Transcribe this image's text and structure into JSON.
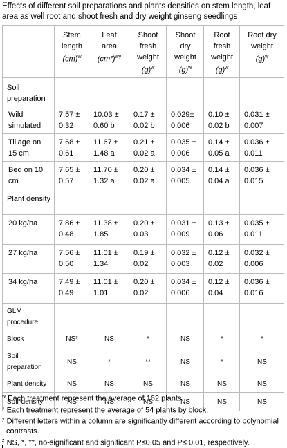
{
  "title": "Effects of different soil preparations and plants densities on stem length, leaf area as well root and shoot fresh and dry weight ginseng seedlings",
  "columns": [
    {
      "label": "Stem length",
      "unit": "(cm)",
      "sup": "w"
    },
    {
      "label": "Leaf area",
      "unit": "(cm²)",
      "sup": "wy"
    },
    {
      "label": "Shoot fresh weight",
      "unit": "(g)",
      "sup": "w"
    },
    {
      "label": "Shoot dry weight",
      "unit": "(g)",
      "sup": "w"
    },
    {
      "label": "Root fresh weight",
      "unit": "(g)",
      "sup": "w"
    },
    {
      "label": "Root dry weight",
      "unit": "(g)",
      "sup": "w"
    }
  ],
  "sections": [
    {
      "title": "Soil preparation",
      "rows": [
        {
          "label": "Wild simulated",
          "cells": [
            "7.57 ± 0.32",
            "10.03 ± 0.60  b",
            "0.17 ± 0.02  b",
            "0.029± 0.006",
            "0.10 ± 0.02 b",
            "0.031 ± 0.007"
          ]
        },
        {
          "label": "Tillage on 15 cm",
          "cells": [
            "7.68 ± 0.61",
            "11.67 ± 1.48  a",
            "0.21 ± 0.02  a",
            "0.035 ± 0.006",
            "0.14 ± 0.05 a",
            "0.036 ± 0.011"
          ]
        },
        {
          "label": "Bed on 10 cm",
          "cells": [
            "7.65 ± 0.57",
            "11.70 ± 1.32  a",
            "0.20 ± 0.02  a",
            "0.034 ± 0.005",
            "0.14 ± 0.04 a",
            "0.036 ± 0.015"
          ]
        }
      ]
    },
    {
      "title": "Plant density",
      "rows": [
        {
          "label": "20 kg/ha",
          "cells": [
            "7.86 ± 0.48",
            "11.38 ± 1.85",
            "0.20 ± 0.03",
            "0.031 ± 0.009",
            "0.13 ± 0.06",
            "0.035 ± 0.011"
          ]
        },
        {
          "label": "27 kg/ha",
          "cells": [
            "7.56 ± 0.50",
            "11.01 ± 1.34",
            "0.19 ± 0.02",
            "0.032 ± 0.003",
            "0.12 ± 0.02",
            "0.032 ± 0.006"
          ]
        },
        {
          "label": "34 kg/ha",
          "cells": [
            "7.49 ± 0.49",
            "11.01 ± 1.01",
            "0.20 ± 0.02",
            "0.034 ± 0.006",
            "0.12 ± 0.04",
            "0.036 ± 0.016"
          ]
        }
      ]
    },
    {
      "title": "GLM procedure",
      "rows": [
        {
          "label": "Block",
          "cells": [
            "NSᶻ",
            "NS",
            "*",
            "NS",
            "*",
            "*"
          ]
        },
        {
          "label": "Soil preparation",
          "cells": [
            "NS",
            "*",
            "**",
            "NS",
            "*",
            "NS"
          ]
        },
        {
          "label": "Plant density",
          "cells": [
            "NS",
            "NS",
            "NS",
            "NS",
            "NS",
            "NS"
          ]
        },
        {
          "label": "Soil*density",
          "cells": [
            "NS",
            "NS",
            "NS",
            "NS",
            "NS",
            "NS"
          ]
        }
      ]
    }
  ],
  "footnotes": [
    {
      "mark": "w",
      "text": "Each treatment represent the average of 162 plants."
    },
    {
      "mark": "x",
      "text": "Each treatment represent the average of 54 plants by block."
    },
    {
      "mark": "y",
      "text": "Different letters within a column are significantly different according to polynomial contrasts."
    },
    {
      "mark": "z",
      "text": "NS, *, **, no-significant and significant P≤0.05 and P≤ 0.01, respectively."
    }
  ]
}
